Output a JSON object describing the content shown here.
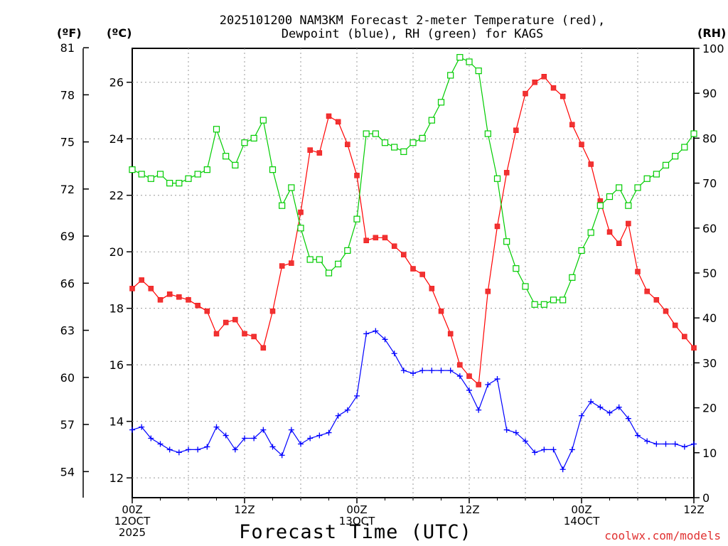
{
  "chart_data": {
    "type": "line",
    "title_line1": "2025101200 NAM3KM Forecast 2-meter Temperature (red),",
    "title_line2": "Dewpoint (blue), RH (green) for KAGS",
    "xlabel": "Forecast Time (UTC)",
    "credit": "coolwx.com/models",
    "units": {
      "fahrenheit": "(ºF)",
      "celsius": "(ºC)",
      "rh": "(RH)"
    },
    "x_range_hours": [
      0,
      60
    ],
    "x_ticks": [
      {
        "hour": 0,
        "lines": [
          "00Z",
          "12OCT",
          "2025"
        ]
      },
      {
        "hour": 12,
        "lines": [
          "12Z"
        ]
      },
      {
        "hour": 24,
        "lines": [
          "00Z",
          "13OCT"
        ]
      },
      {
        "hour": 36,
        "lines": [
          "12Z"
        ]
      },
      {
        "hour": 48,
        "lines": [
          "00Z",
          "14OCT"
        ]
      },
      {
        "hour": 60,
        "lines": [
          "12Z"
        ]
      }
    ],
    "celsius_axis": {
      "min": 11.3,
      "max": 27.2,
      "ticks": [
        12,
        14,
        16,
        18,
        20,
        22,
        24,
        26
      ]
    },
    "fahrenheit_axis": {
      "min": 52.34,
      "max": 80.96,
      "ticks": [
        54,
        57,
        60,
        63,
        66,
        69,
        72,
        75,
        78,
        81
      ]
    },
    "rh_axis": {
      "min": 0,
      "max": 100,
      "ticks": [
        0,
        10,
        20,
        30,
        40,
        50,
        60,
        70,
        80,
        90,
        100
      ]
    },
    "hours": [
      0,
      1,
      2,
      3,
      4,
      5,
      6,
      7,
      8,
      9,
      10,
      11,
      12,
      13,
      14,
      15,
      16,
      17,
      18,
      19,
      20,
      21,
      22,
      23,
      24,
      25,
      26,
      27,
      28,
      29,
      30,
      31,
      32,
      33,
      34,
      35,
      36,
      37,
      38,
      39,
      40,
      41,
      42,
      43,
      44,
      45,
      46,
      47,
      48,
      49,
      50,
      51,
      52,
      53,
      54,
      55,
      56,
      57,
      58,
      59,
      60
    ],
    "series": [
      {
        "name": "2-meter Temperature",
        "color": "#ff0000",
        "axis": "celsius",
        "marker": "filled-square",
        "values": [
          18.7,
          19.0,
          18.7,
          18.3,
          18.5,
          18.4,
          18.3,
          18.1,
          17.9,
          17.1,
          17.5,
          17.6,
          17.1,
          17.0,
          16.6,
          17.9,
          19.5,
          19.6,
          21.4,
          23.6,
          23.5,
          24.8,
          24.6,
          23.8,
          22.7,
          20.4,
          20.5,
          20.5,
          20.2,
          19.9,
          19.4,
          19.2,
          18.7,
          17.9,
          17.1,
          16.0,
          15.6,
          15.3,
          18.6,
          20.9,
          22.8,
          24.3,
          25.6,
          26.0,
          26.2,
          25.8,
          25.5,
          24.5,
          23.8,
          23.1,
          21.8,
          20.7,
          20.3,
          21.0,
          19.3,
          18.6,
          18.3,
          17.9,
          17.4,
          17.0,
          16.6
        ]
      },
      {
        "name": "Dewpoint",
        "color": "#0000ff",
        "axis": "celsius",
        "marker": "plus",
        "values": [
          13.7,
          13.8,
          13.4,
          13.2,
          13.0,
          12.9,
          13.0,
          13.0,
          13.1,
          13.8,
          13.5,
          13.0,
          13.4,
          13.4,
          13.7,
          13.1,
          12.8,
          13.7,
          13.2,
          13.4,
          13.5,
          13.6,
          14.2,
          14.4,
          14.9,
          17.1,
          17.2,
          16.9,
          16.4,
          15.8,
          15.7,
          15.8,
          15.8,
          15.8,
          15.8,
          15.6,
          15.1,
          14.4,
          15.3,
          15.5,
          13.7,
          13.6,
          13.3,
          12.9,
          13.0,
          13.0,
          12.3,
          13.0,
          14.2,
          14.7,
          14.5,
          14.3,
          14.5,
          14.1,
          13.5,
          13.3,
          13.2,
          13.2,
          13.2,
          13.1,
          13.2
        ]
      },
      {
        "name": "RH",
        "color": "#00cc00",
        "axis": "rh",
        "marker": "open-square",
        "values": [
          73,
          72,
          71,
          72,
          70,
          70,
          71,
          72,
          73,
          82,
          76,
          74,
          79,
          80,
          84,
          73,
          65,
          69,
          60,
          53,
          53,
          50,
          52,
          55,
          62,
          81,
          81,
          79,
          78,
          77,
          79,
          80,
          84,
          88,
          94,
          98,
          97,
          95,
          81,
          71,
          57,
          51,
          47,
          43,
          43,
          44,
          44,
          49,
          55,
          59,
          65,
          67,
          69,
          65,
          69,
          71,
          72,
          74,
          76,
          78,
          81
        ]
      }
    ]
  }
}
